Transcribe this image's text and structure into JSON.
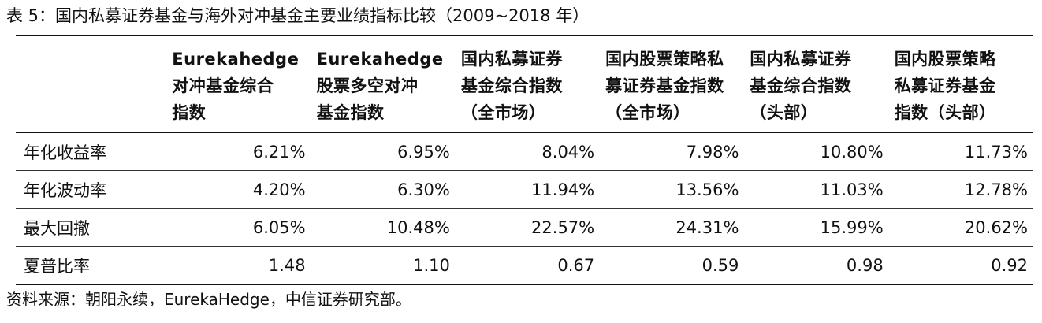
{
  "title": "表 5：国内私募证券基金与海外对冲基金主要业绩指标比较（2009~2018 年）",
  "table": {
    "corner": "",
    "headers": [
      [
        "Eurekahedge",
        "对冲基金综合",
        "指数"
      ],
      [
        "Eurekahedge",
        "股票多空对冲",
        "基金指数"
      ],
      [
        "国内私募证券",
        "基金综合指数",
        "（全市场）"
      ],
      [
        "国内股票策略私",
        "募证券基金指数",
        "（全市场）"
      ],
      [
        "国内私募证券",
        "基金综合指数",
        "（头部）"
      ],
      [
        "国内股票策略",
        "私募证券基金",
        "指数（头部）"
      ]
    ],
    "rows": [
      {
        "label": "年化收益率",
        "values": [
          "6.21%",
          "6.95%",
          "8.04%",
          "7.98%",
          "10.80%",
          "11.73%"
        ]
      },
      {
        "label": "年化波动率",
        "values": [
          "4.20%",
          "6.30%",
          "11.94%",
          "13.56%",
          "11.03%",
          "12.78%"
        ]
      },
      {
        "label": "最大回撤",
        "values": [
          "6.05%",
          "10.48%",
          "22.57%",
          "24.31%",
          "15.99%",
          "20.62%"
        ]
      },
      {
        "label": "夏普比率",
        "values": [
          "1.48",
          "1.10",
          "0.67",
          "0.59",
          "0.98",
          "0.92"
        ]
      }
    ]
  },
  "source": "资料来源：朝阳永续，EurekaHedge，中信证券研究部。"
}
